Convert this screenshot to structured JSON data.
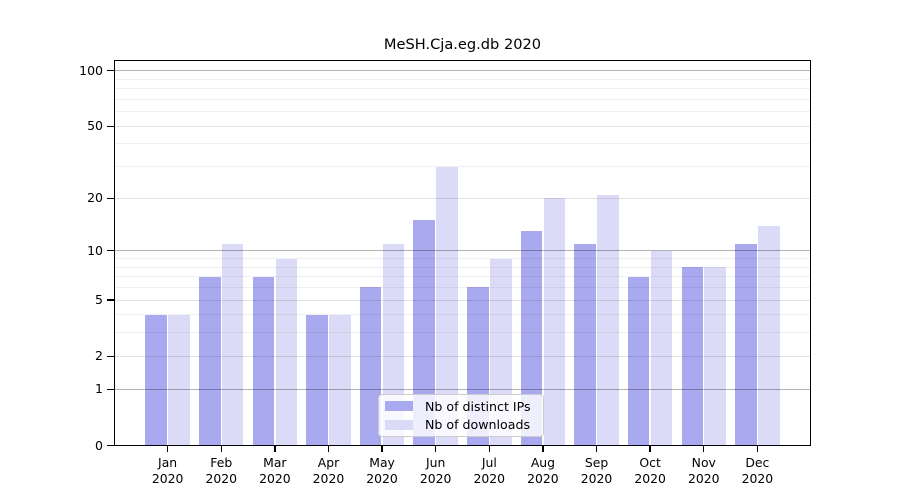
{
  "chart_data": {
    "type": "bar",
    "title": "MeSH.Cja.eg.db 2020",
    "months": [
      "Jan",
      "Feb",
      "Mar",
      "Apr",
      "May",
      "Jun",
      "Jul",
      "Aug",
      "Sep",
      "Oct",
      "Nov",
      "Dec"
    ],
    "year_label": "2020",
    "series": [
      {
        "name": "Nb of distinct IPs",
        "color": "#a9a9ef",
        "values": [
          4,
          7,
          7,
          4,
          6,
          15,
          6,
          13,
          11,
          7,
          8,
          11
        ]
      },
      {
        "name": "Nb of downloads",
        "color": "#dbdbf8",
        "values": [
          4,
          11,
          9,
          4,
          11,
          30,
          9,
          20,
          21,
          10,
          8,
          14
        ]
      }
    ],
    "y_axis": {
      "scale": "log1p",
      "ticks": [
        0,
        1,
        2,
        5,
        10,
        20,
        50,
        100
      ],
      "pow10_gridlines": [
        1,
        10,
        100
      ],
      "mid_gridlines": [
        2,
        5,
        20,
        50
      ],
      "minor_gridlines": [
        3,
        4,
        6,
        7,
        8,
        9,
        30,
        40,
        60,
        70,
        80,
        90
      ],
      "ylim": [
        0,
        115
      ]
    },
    "grid": true,
    "legend_position": "inside lower-center"
  }
}
